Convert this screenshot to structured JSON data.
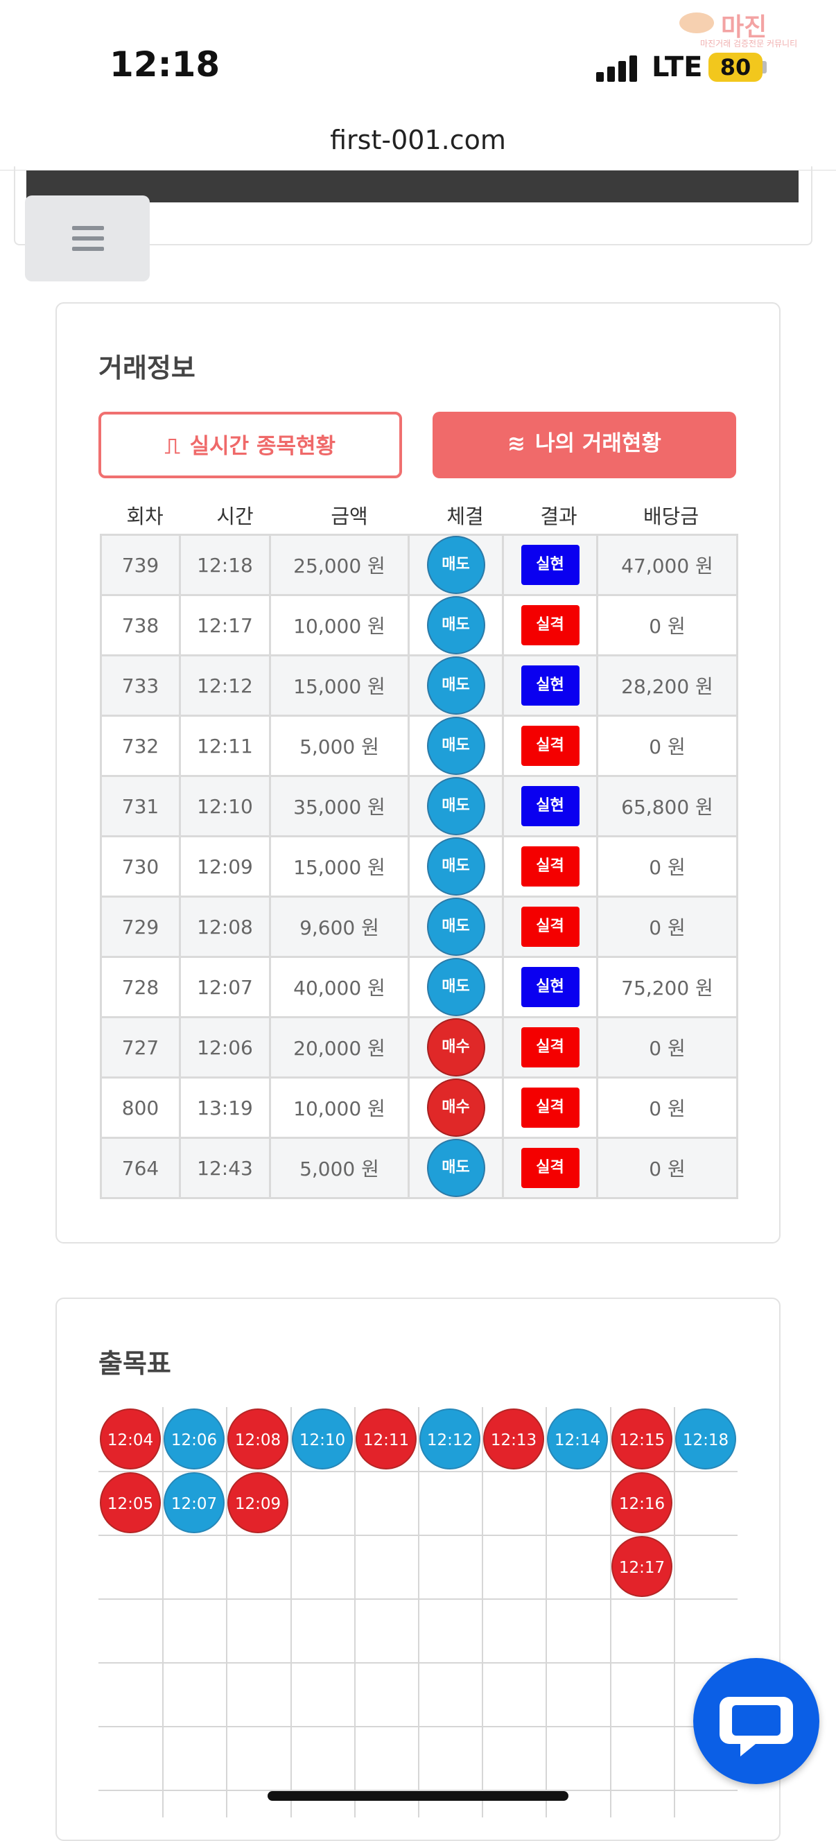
{
  "status": {
    "time": "12:18",
    "network": "LTE",
    "battery": "80"
  },
  "watermark": {
    "title": "마진",
    "subtitle": "마진거래 검증전문 커뮤니티"
  },
  "browser": {
    "url": "first-001.com"
  },
  "menu": {
    "icon": "hamburger-icon"
  },
  "trade_card": {
    "title": "거래정보",
    "tab_realtime": "실시간 종목현황",
    "tab_mine": "나의 거래현황",
    "headers": [
      "회차",
      "시간",
      "금액",
      "체결",
      "결과",
      "배당금"
    ],
    "rows": [
      {
        "round": "739",
        "time": "12:18",
        "amount": "25,000 원",
        "exec": "매도",
        "exec_type": "sell",
        "result": "실현",
        "result_type": "win",
        "payout": "47,000 원"
      },
      {
        "round": "738",
        "time": "12:17",
        "amount": "10,000 원",
        "exec": "매도",
        "exec_type": "sell",
        "result": "실격",
        "result_type": "lose",
        "payout": "0 원"
      },
      {
        "round": "733",
        "time": "12:12",
        "amount": "15,000 원",
        "exec": "매도",
        "exec_type": "sell",
        "result": "실현",
        "result_type": "win",
        "payout": "28,200 원"
      },
      {
        "round": "732",
        "time": "12:11",
        "amount": "5,000 원",
        "exec": "매도",
        "exec_type": "sell",
        "result": "실격",
        "result_type": "lose",
        "payout": "0 원"
      },
      {
        "round": "731",
        "time": "12:10",
        "amount": "35,000 원",
        "exec": "매도",
        "exec_type": "sell",
        "result": "실현",
        "result_type": "win",
        "payout": "65,800 원"
      },
      {
        "round": "730",
        "time": "12:09",
        "amount": "15,000 원",
        "exec": "매도",
        "exec_type": "sell",
        "result": "실격",
        "result_type": "lose",
        "payout": "0 원"
      },
      {
        "round": "729",
        "time": "12:08",
        "amount": "9,600 원",
        "exec": "매도",
        "exec_type": "sell",
        "result": "실격",
        "result_type": "lose",
        "payout": "0 원"
      },
      {
        "round": "728",
        "time": "12:07",
        "amount": "40,000 원",
        "exec": "매도",
        "exec_type": "sell",
        "result": "실현",
        "result_type": "win",
        "payout": "75,200 원"
      },
      {
        "round": "727",
        "time": "12:06",
        "amount": "20,000 원",
        "exec": "매수",
        "exec_type": "buy",
        "result": "실격",
        "result_type": "lose",
        "payout": "0 원"
      },
      {
        "round": "800",
        "time": "13:19",
        "amount": "10,000 원",
        "exec": "매수",
        "exec_type": "buy",
        "result": "실격",
        "result_type": "lose",
        "payout": "0 원"
      },
      {
        "round": "764",
        "time": "12:43",
        "amount": "5,000 원",
        "exec": "매도",
        "exec_type": "sell",
        "result": "실격",
        "result_type": "lose",
        "payout": "0 원"
      }
    ]
  },
  "chart_card": {
    "title": "출목표",
    "columns": [
      {
        "color": "red",
        "times": [
          "12:04",
          "12:05"
        ]
      },
      {
        "color": "blue",
        "times": [
          "12:06",
          "12:07"
        ]
      },
      {
        "color": "red",
        "times": [
          "12:08",
          "12:09"
        ]
      },
      {
        "color": "blue",
        "times": [
          "12:10"
        ]
      },
      {
        "color": "red",
        "times": [
          "12:11"
        ]
      },
      {
        "color": "blue",
        "times": [
          "12:12"
        ]
      },
      {
        "color": "red",
        "times": [
          "12:13"
        ]
      },
      {
        "color": "blue",
        "times": [
          "12:14"
        ]
      },
      {
        "color": "red",
        "times": [
          "12:15",
          "12:16",
          "12:17"
        ]
      },
      {
        "color": "blue",
        "times": [
          "12:18"
        ]
      }
    ]
  },
  "colors": {
    "accent": "#f06a6a",
    "sell": "#1f9fd8",
    "buy": "#e02828",
    "win": "#0a00f0",
    "lose": "#f40000",
    "chat": "#0b5fe6"
  },
  "chat": {
    "icon": "chat-bubble-icon"
  }
}
